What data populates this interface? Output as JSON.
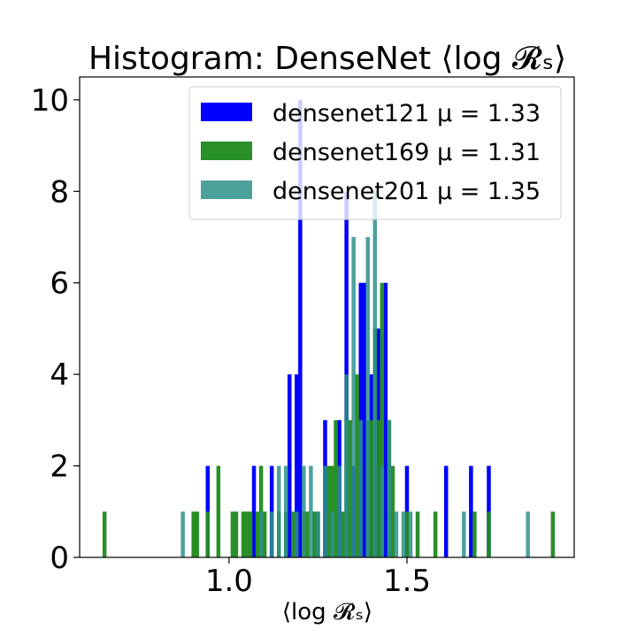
{
  "chart_data": {
    "type": "bar",
    "title": "Histogram: DenseNet ⟨log 𝓡ₛ⟩",
    "xlabel": "⟨log 𝓡ₛ⟩",
    "ylabel": "",
    "xlim": [
      0.58,
      1.97
    ],
    "ylim": [
      0,
      10.5
    ],
    "xticks": [
      1.0,
      1.5
    ],
    "xtick_labels": [
      "1.0",
      "1.5"
    ],
    "yticks": [
      0,
      2,
      4,
      6,
      8,
      10
    ],
    "ytick_labels": [
      "0",
      "2",
      "4",
      "6",
      "8",
      "10"
    ],
    "grid": false,
    "legend_position": "top-right",
    "series": [
      {
        "name": "densenet121 μ = 1.33",
        "label_prefix": "densenet121",
        "mu_text": "μ = 1.33",
        "color": "#0000ff",
        "opacity": 1.0,
        "bars": [
          {
            "x": 0.94,
            "count": 2
          },
          {
            "x": 1.07,
            "count": 2
          },
          {
            "x": 1.12,
            "count": 2
          },
          {
            "x": 1.17,
            "count": 4
          },
          {
            "x": 1.19,
            "count": 4
          },
          {
            "x": 1.2,
            "count": 10
          },
          {
            "x": 1.27,
            "count": 3
          },
          {
            "x": 1.31,
            "count": 3
          },
          {
            "x": 1.33,
            "count": 8
          },
          {
            "x": 1.35,
            "count": 2
          },
          {
            "x": 1.37,
            "count": 6
          },
          {
            "x": 1.38,
            "count": 6
          },
          {
            "x": 1.4,
            "count": 4
          },
          {
            "x": 1.42,
            "count": 5
          },
          {
            "x": 1.44,
            "count": 6
          },
          {
            "x": 1.5,
            "count": 2
          },
          {
            "x": 1.61,
            "count": 2
          },
          {
            "x": 1.68,
            "count": 2
          },
          {
            "x": 1.73,
            "count": 2
          }
        ]
      },
      {
        "name": "densenet169 μ = 1.31",
        "label_prefix": "densenet169",
        "mu_text": "μ = 1.31",
        "color": "#228b22",
        "opacity": 0.97,
        "bars": [
          {
            "x": 0.65,
            "count": 1
          },
          {
            "x": 0.9,
            "count": 1
          },
          {
            "x": 0.91,
            "count": 1
          },
          {
            "x": 0.94,
            "count": 1
          },
          {
            "x": 0.97,
            "count": 2
          },
          {
            "x": 1.01,
            "count": 1
          },
          {
            "x": 1.02,
            "count": 1
          },
          {
            "x": 1.04,
            "count": 1
          },
          {
            "x": 1.05,
            "count": 1
          },
          {
            "x": 1.06,
            "count": 1
          },
          {
            "x": 1.08,
            "count": 1
          },
          {
            "x": 1.09,
            "count": 2
          },
          {
            "x": 1.1,
            "count": 1
          },
          {
            "x": 1.14,
            "count": 1
          },
          {
            "x": 1.16,
            "count": 1
          },
          {
            "x": 1.18,
            "count": 1
          },
          {
            "x": 1.21,
            "count": 1
          },
          {
            "x": 1.22,
            "count": 1
          },
          {
            "x": 1.24,
            "count": 1
          },
          {
            "x": 1.25,
            "count": 1
          },
          {
            "x": 1.28,
            "count": 2
          },
          {
            "x": 1.29,
            "count": 2
          },
          {
            "x": 1.3,
            "count": 3
          },
          {
            "x": 1.32,
            "count": 1
          },
          {
            "x": 1.33,
            "count": 3
          },
          {
            "x": 1.34,
            "count": 3
          },
          {
            "x": 1.36,
            "count": 4
          },
          {
            "x": 1.39,
            "count": 3
          },
          {
            "x": 1.4,
            "count": 3
          },
          {
            "x": 1.41,
            "count": 5
          },
          {
            "x": 1.42,
            "count": 3
          },
          {
            "x": 1.43,
            "count": 6
          },
          {
            "x": 1.45,
            "count": 3
          },
          {
            "x": 1.46,
            "count": 2
          },
          {
            "x": 1.5,
            "count": 1
          },
          {
            "x": 1.53,
            "count": 1
          },
          {
            "x": 1.58,
            "count": 1
          },
          {
            "x": 1.69,
            "count": 1
          },
          {
            "x": 1.73,
            "count": 1
          },
          {
            "x": 1.91,
            "count": 1
          }
        ]
      },
      {
        "name": "densenet201 μ = 1.35",
        "label_prefix": "densenet201",
        "mu_text": "μ = 1.35",
        "color": "#2e918a",
        "opacity": 0.85,
        "bars": [
          {
            "x": 0.87,
            "count": 1
          },
          {
            "x": 1.09,
            "count": 1
          },
          {
            "x": 1.12,
            "count": 1
          },
          {
            "x": 1.14,
            "count": 2
          },
          {
            "x": 1.16,
            "count": 2
          },
          {
            "x": 1.19,
            "count": 1
          },
          {
            "x": 1.21,
            "count": 2
          },
          {
            "x": 1.23,
            "count": 2
          },
          {
            "x": 1.25,
            "count": 1
          },
          {
            "x": 1.27,
            "count": 2
          },
          {
            "x": 1.29,
            "count": 1
          },
          {
            "x": 1.31,
            "count": 2
          },
          {
            "x": 1.33,
            "count": 4
          },
          {
            "x": 1.35,
            "count": 7
          },
          {
            "x": 1.37,
            "count": 3
          },
          {
            "x": 1.39,
            "count": 7
          },
          {
            "x": 1.41,
            "count": 8
          },
          {
            "x": 1.43,
            "count": 2
          },
          {
            "x": 1.45,
            "count": 3
          },
          {
            "x": 1.47,
            "count": 1
          },
          {
            "x": 1.49,
            "count": 1
          },
          {
            "x": 1.51,
            "count": 1
          },
          {
            "x": 1.66,
            "count": 1
          },
          {
            "x": 1.84,
            "count": 1
          }
        ]
      }
    ]
  }
}
